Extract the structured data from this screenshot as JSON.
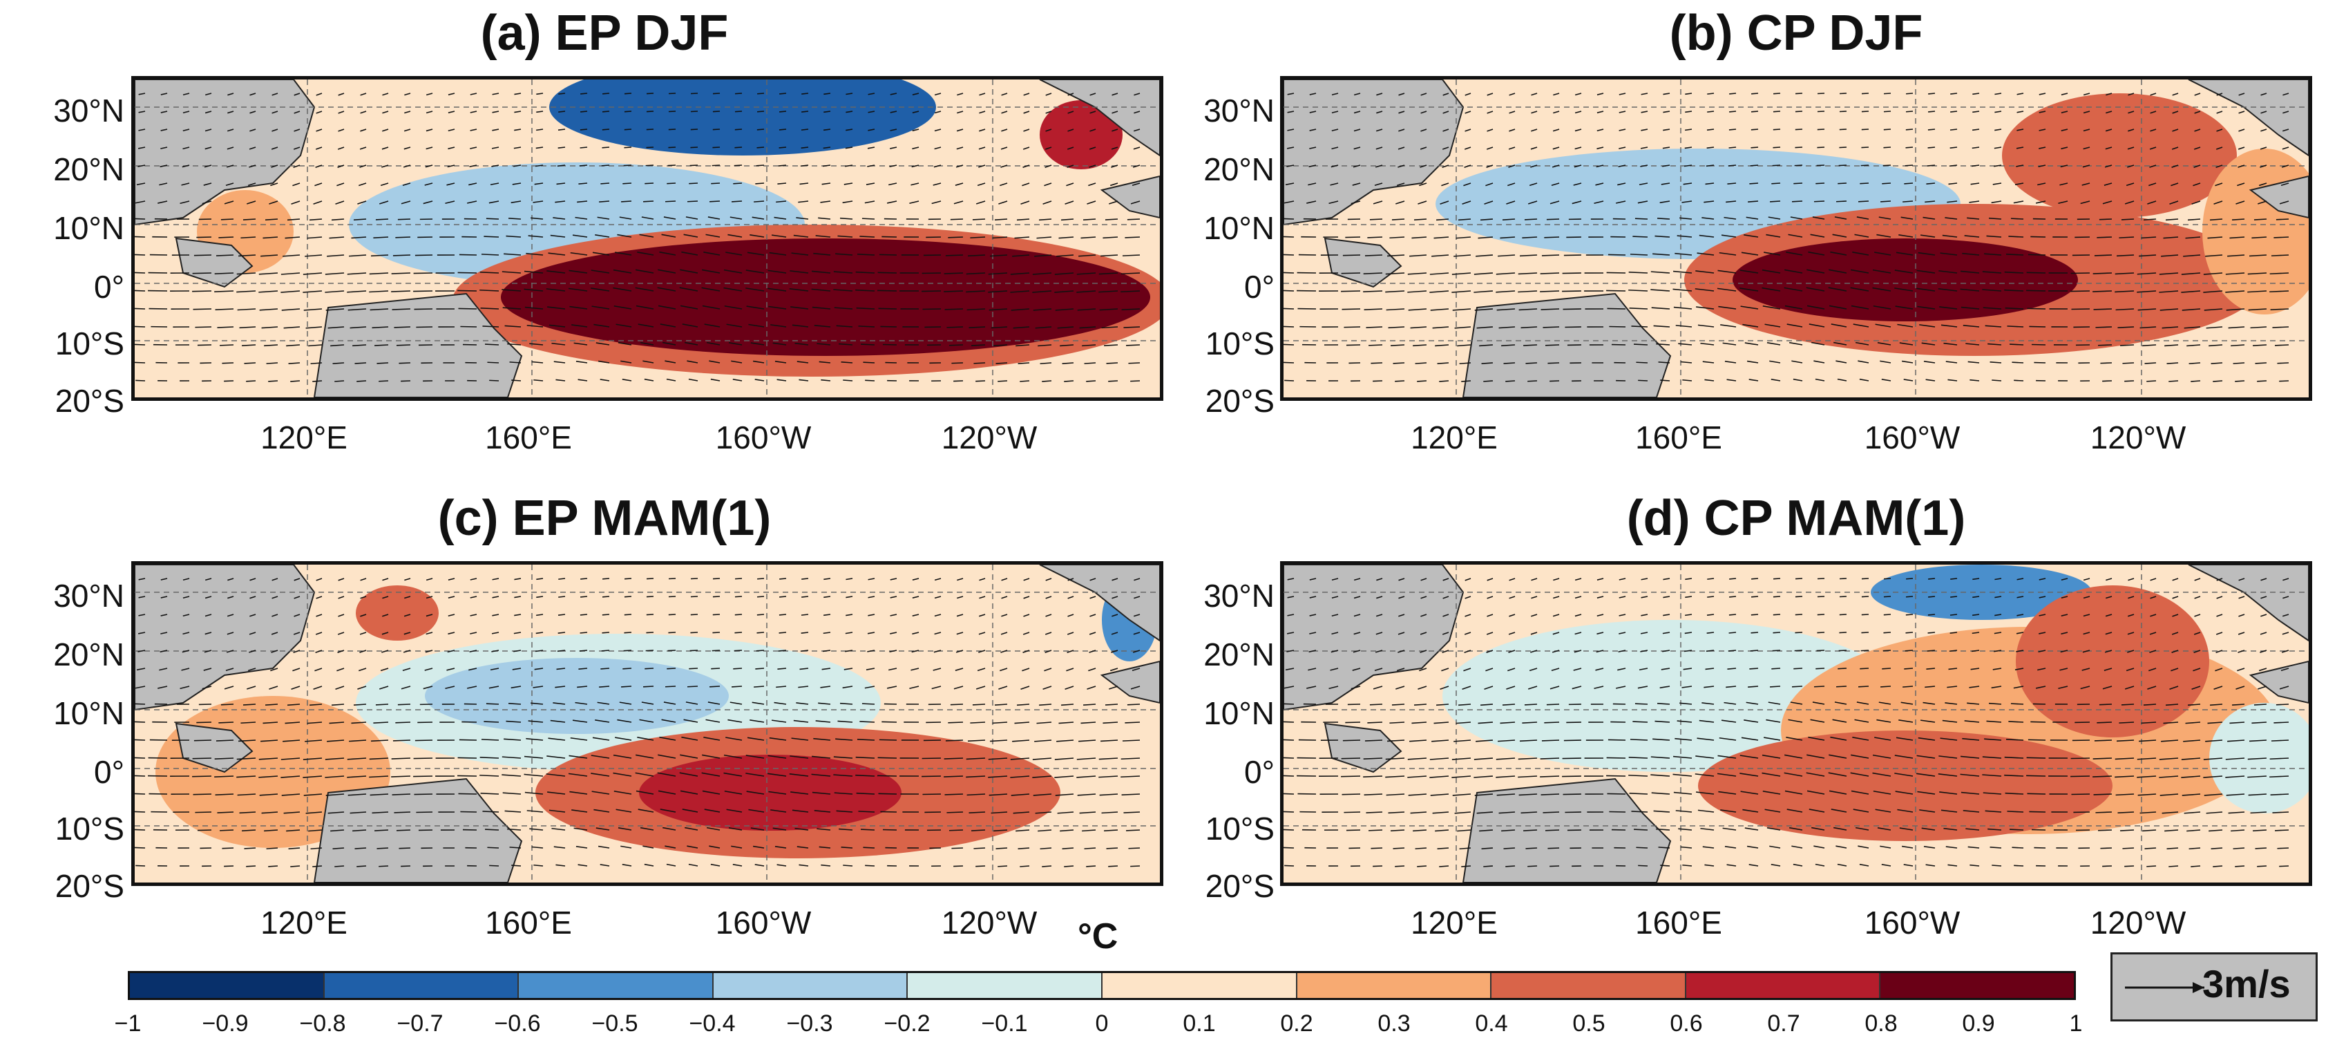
{
  "panels": [
    {
      "title": "(a) EP DJF"
    },
    {
      "title": "(b) CP DJF"
    },
    {
      "title": "(c) EP MAM(1)"
    },
    {
      "title": "(d) CP MAM(1)"
    }
  ],
  "lat_labels": [
    "30°N",
    "20°N",
    "10°N",
    "0°",
    "10°S",
    "20°S"
  ],
  "lon_labels": [
    "120°E",
    "160°E",
    "160°W",
    "120°W"
  ],
  "unit": "°C",
  "colorbar": {
    "ticks": [
      "−1",
      "−0.9",
      "−0.8",
      "−0.7",
      "−0.6",
      "−0.5",
      "−0.4",
      "−0.3",
      "−0.2",
      "−0.1",
      "0",
      "0.1",
      "0.2",
      "0.3",
      "0.4",
      "0.5",
      "0.6",
      "0.7",
      "0.8",
      "0.9",
      "1"
    ],
    "colors": [
      "#08306b",
      "#1f5fa8",
      "#4a8fcc",
      "#a6cde6",
      "#d4ecea",
      "#fde4c8",
      "#f7aa72",
      "#d96449",
      "#b51d2c",
      "#6a0016"
    ]
  },
  "reference_vector": {
    "label": "3m/s"
  },
  "chart_data": {
    "type": "heatmap",
    "variable": "SST anomaly with surface wind vectors",
    "units": "°C",
    "color_range": [
      -1,
      1
    ],
    "lat_range": [
      "20°S",
      "35°N"
    ],
    "lon_range": [
      "~90°E",
      "~80°W"
    ]
  }
}
